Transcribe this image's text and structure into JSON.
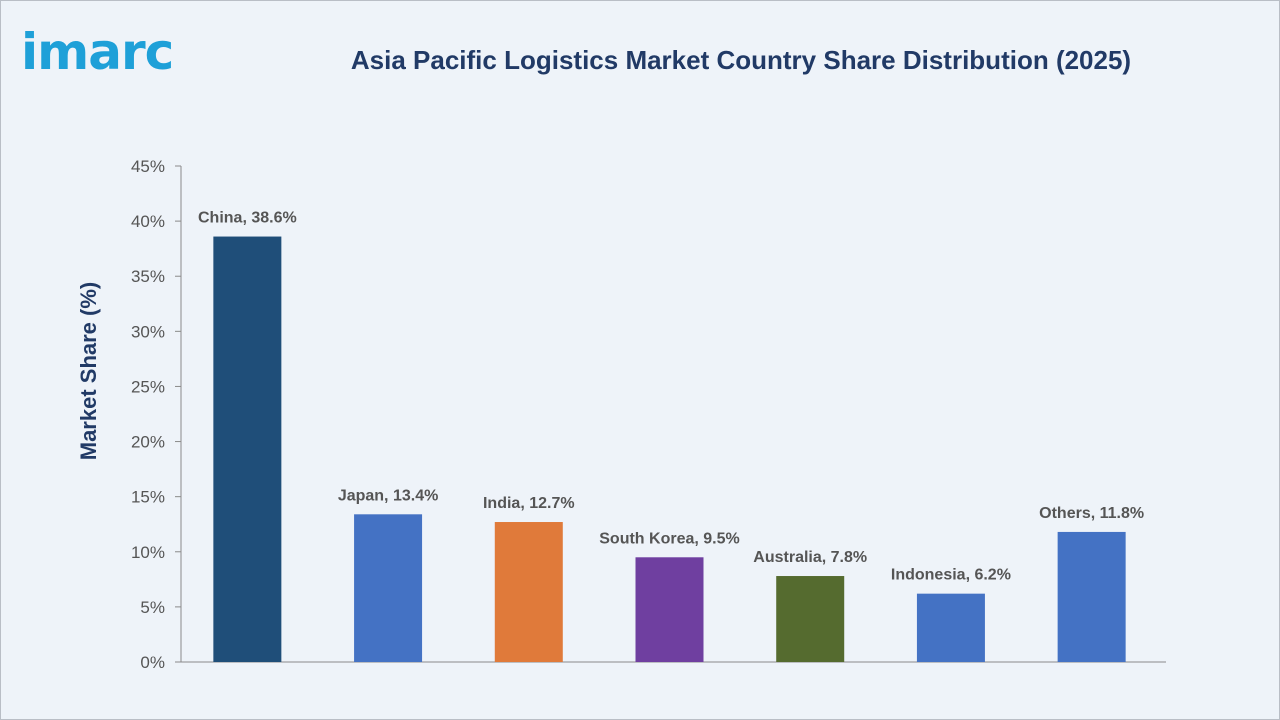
{
  "logo": "imarc",
  "chart_data": {
    "type": "bar",
    "title": "Asia Pacific Logistics Market Country Share Distribution (2025)",
    "xlabel": "",
    "ylabel": "Market Share (%)",
    "ylim": [
      0,
      45
    ],
    "ytick_labels": [
      "0%",
      "5%",
      "10%",
      "15%",
      "20%",
      "25%",
      "30%",
      "35%",
      "40%",
      "45%"
    ],
    "grid": false,
    "categories": [
      "China",
      "Japan",
      "India",
      "South Korea",
      "Australia",
      "Indonesia",
      "Others"
    ],
    "values": [
      38.6,
      13.4,
      12.7,
      9.5,
      7.8,
      6.2,
      11.8
    ],
    "data_labels": [
      "China, 38.6%",
      "Japan, 13.4%",
      "India, 12.7%",
      "South Korea, 9.5%",
      "Australia, 7.8%",
      "Indonesia, 6.2%",
      "Others, 11.8%"
    ],
    "colors": [
      "#1f4e79",
      "#4472c4",
      "#e07a3a",
      "#6f3fa0",
      "#556b2f",
      "#4472c4",
      "#4472c4"
    ]
  }
}
